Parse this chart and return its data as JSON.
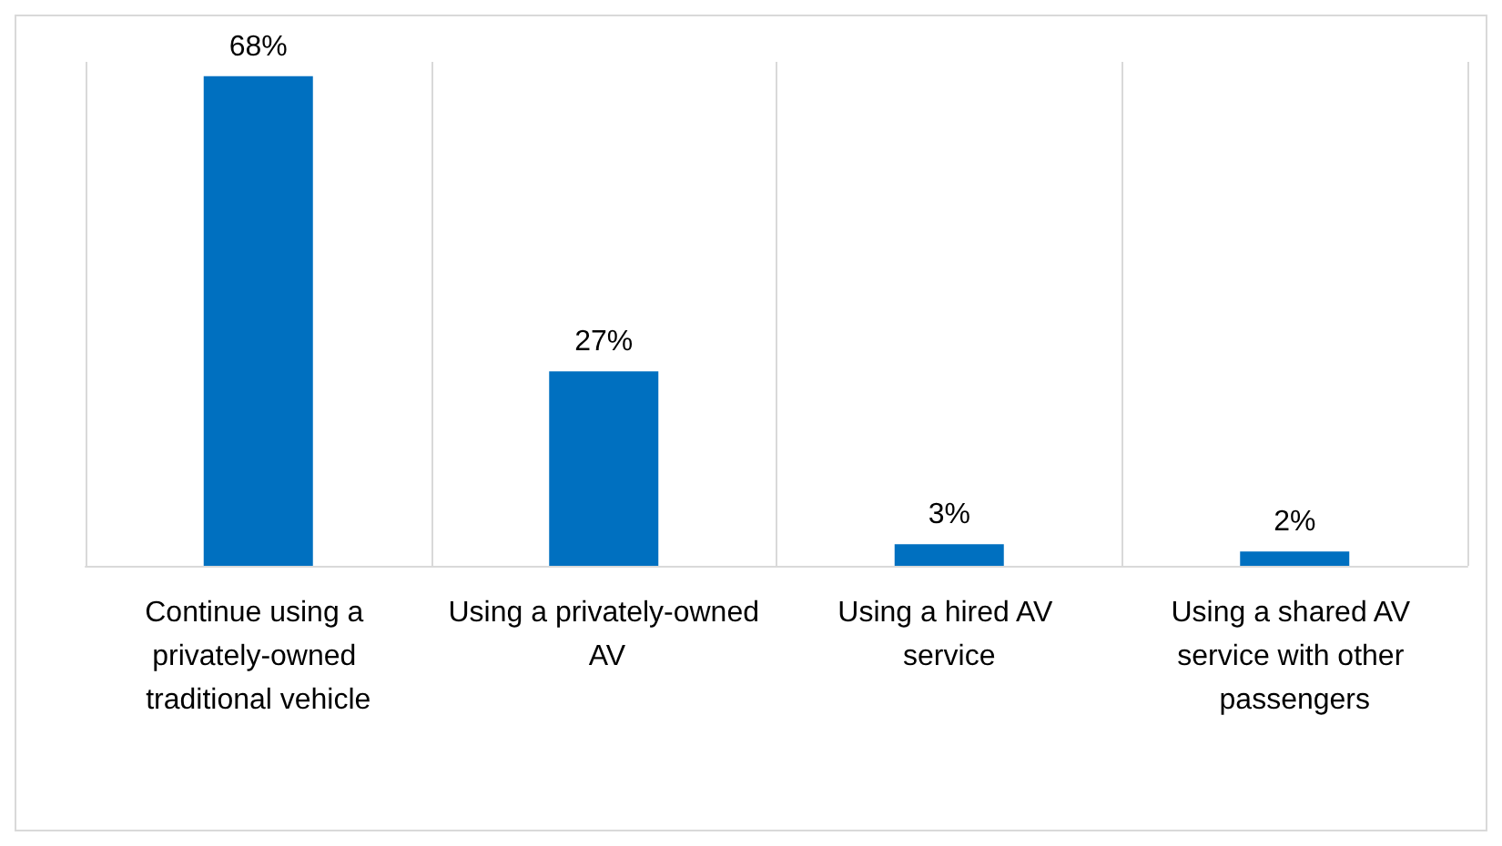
{
  "chart_data": {
    "type": "bar",
    "categories": [
      "Continue using a privately-owned traditional vehicle",
      "Using a privately-owned AV",
      "Using a hired AV service",
      "Using a shared AV service with other passengers"
    ],
    "values": [
      68,
      27,
      3,
      2
    ],
    "value_labels": [
      "68%",
      "27%",
      "3%",
      "2%"
    ],
    "color": "#0070c0",
    "grid": "x"
  }
}
